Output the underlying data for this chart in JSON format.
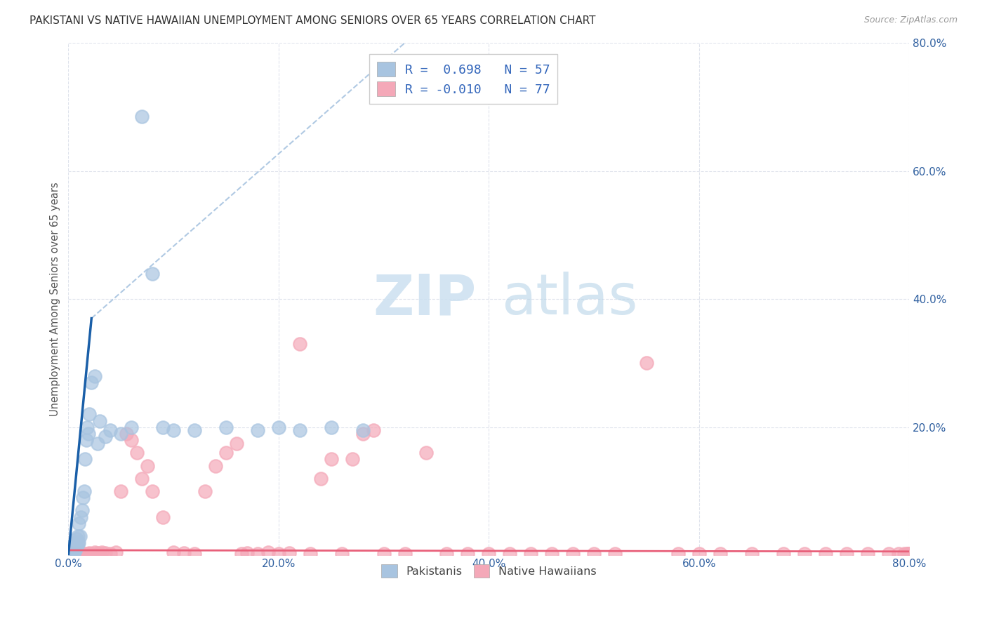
{
  "title": "PAKISTANI VS NATIVE HAWAIIAN UNEMPLOYMENT AMONG SENIORS OVER 65 YEARS CORRELATION CHART",
  "source": "Source: ZipAtlas.com",
  "ylabel": "Unemployment Among Seniors over 65 years",
  "xlim": [
    0.0,
    0.8
  ],
  "ylim": [
    0.0,
    0.8
  ],
  "pakistani_color": "#a8c4e0",
  "hawaiian_color": "#f4a8b8",
  "trendline_pak_color": "#1a5fa8",
  "trendline_haw_color": "#e8607a",
  "watermark_zip": "ZIP",
  "watermark_atlas": "atlas",
  "legend_labels": [
    "R =  0.698   N = 57",
    "R = -0.010   N = 77"
  ],
  "bottom_legend_labels": [
    "Pakistanis",
    "Native Hawaiians"
  ],
  "pakistani_x": [
    0.0,
    0.001,
    0.001,
    0.002,
    0.002,
    0.002,
    0.003,
    0.003,
    0.003,
    0.003,
    0.004,
    0.004,
    0.004,
    0.004,
    0.005,
    0.005,
    0.005,
    0.005,
    0.006,
    0.006,
    0.007,
    0.007,
    0.008,
    0.008,
    0.009,
    0.009,
    0.01,
    0.01,
    0.011,
    0.012,
    0.013,
    0.014,
    0.015,
    0.016,
    0.017,
    0.018,
    0.019,
    0.02,
    0.022,
    0.025,
    0.028,
    0.03,
    0.035,
    0.04,
    0.05,
    0.06,
    0.07,
    0.08,
    0.09,
    0.1,
    0.12,
    0.15,
    0.18,
    0.2,
    0.22,
    0.25,
    0.28
  ],
  "pakistani_y": [
    0.0,
    0.001,
    0.002,
    0.001,
    0.003,
    0.005,
    0.002,
    0.004,
    0.006,
    0.01,
    0.003,
    0.006,
    0.008,
    0.012,
    0.004,
    0.008,
    0.012,
    0.018,
    0.006,
    0.015,
    0.01,
    0.02,
    0.015,
    0.025,
    0.018,
    0.03,
    0.02,
    0.05,
    0.03,
    0.06,
    0.07,
    0.09,
    0.1,
    0.15,
    0.18,
    0.2,
    0.19,
    0.22,
    0.27,
    0.28,
    0.175,
    0.21,
    0.185,
    0.195,
    0.19,
    0.2,
    0.685,
    0.44,
    0.2,
    0.195,
    0.195,
    0.2,
    0.195,
    0.2,
    0.195,
    0.2,
    0.195
  ],
  "hawaiian_x": [
    0.002,
    0.003,
    0.005,
    0.007,
    0.008,
    0.01,
    0.012,
    0.015,
    0.018,
    0.02,
    0.022,
    0.025,
    0.028,
    0.03,
    0.032,
    0.035,
    0.04,
    0.045,
    0.05,
    0.055,
    0.06,
    0.065,
    0.07,
    0.075,
    0.08,
    0.09,
    0.1,
    0.11,
    0.12,
    0.13,
    0.14,
    0.15,
    0.16,
    0.165,
    0.17,
    0.18,
    0.19,
    0.2,
    0.21,
    0.22,
    0.23,
    0.24,
    0.25,
    0.26,
    0.27,
    0.28,
    0.29,
    0.3,
    0.32,
    0.34,
    0.36,
    0.38,
    0.4,
    0.42,
    0.44,
    0.46,
    0.48,
    0.5,
    0.52,
    0.55,
    0.58,
    0.6,
    0.62,
    0.65,
    0.68,
    0.7,
    0.72,
    0.74,
    0.76,
    0.78,
    0.79,
    0.795,
    0.798,
    0.799,
    0.799,
    0.799,
    0.799
  ],
  "hawaiian_y": [
    0.005,
    0.002,
    0.003,
    0.004,
    0.002,
    0.003,
    0.004,
    0.003,
    0.002,
    0.004,
    0.003,
    0.005,
    0.004,
    0.003,
    0.005,
    0.004,
    0.003,
    0.005,
    0.1,
    0.19,
    0.18,
    0.16,
    0.12,
    0.14,
    0.1,
    0.06,
    0.005,
    0.004,
    0.003,
    0.1,
    0.14,
    0.16,
    0.175,
    0.003,
    0.004,
    0.003,
    0.005,
    0.003,
    0.004,
    0.33,
    0.003,
    0.12,
    0.15,
    0.003,
    0.15,
    0.19,
    0.195,
    0.003,
    0.003,
    0.16,
    0.003,
    0.003,
    0.003,
    0.003,
    0.003,
    0.003,
    0.003,
    0.003,
    0.003,
    0.3,
    0.003,
    0.003,
    0.003,
    0.003,
    0.003,
    0.003,
    0.003,
    0.003,
    0.003,
    0.003,
    0.003,
    0.003,
    0.003,
    0.003,
    0.003,
    0.003,
    0.003
  ],
  "pak_trendline_x": [
    0.0,
    0.022
  ],
  "pak_trendline_y": [
    0.0,
    0.37
  ],
  "pak_dashline_x": [
    0.022,
    0.32
  ],
  "pak_dashline_y": [
    0.37,
    0.8
  ],
  "haw_trendline_x": [
    0.0,
    0.8
  ],
  "haw_trendline_y": [
    0.008,
    0.006
  ]
}
